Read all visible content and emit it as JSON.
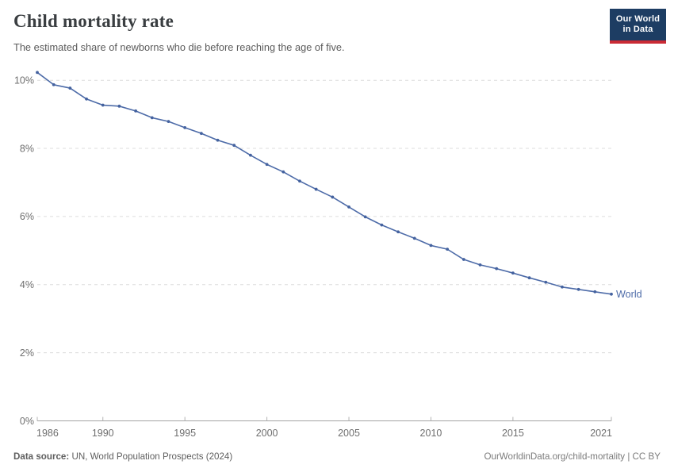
{
  "header": {
    "title": "Child mortality rate",
    "subtitle": "The estimated share of newborns who die before reaching the age of five.",
    "logo": {
      "line1": "Our World",
      "line2": "in Data"
    }
  },
  "footer": {
    "source_label": "Data source:",
    "source_text": " UN, World Population Prospects (2024)",
    "right_text": "OurWorldinData.org/child-mortality | CC BY"
  },
  "colors": {
    "line": "#4d6ba8",
    "point": "#44629f",
    "end_label": "#4d6ba8",
    "grid": "#dcdcdc",
    "axis": "#a3a3a3",
    "tick": "#b3b3b3",
    "tick_text": "#6e6e6e",
    "logo_bg": "#1d3d63",
    "logo_red": "#ca2b35"
  },
  "chart_data": {
    "type": "line",
    "title": "Child mortality rate",
    "subtitle": "The estimated share of newborns who die before reaching the age of five.",
    "xlabel": "",
    "ylabel": "",
    "ylim": [
      0,
      10.4
    ],
    "grid": "horizontal-dashed",
    "legend_position": "end-of-line",
    "end_label": "World",
    "x_ticks": [
      1986,
      1990,
      1995,
      2000,
      2005,
      2010,
      2015,
      2021
    ],
    "y_ticks": [
      0,
      2,
      4,
      6,
      8,
      10
    ],
    "y_tick_suffix": "%",
    "series": [
      {
        "name": "World",
        "x": [
          1986,
          1987,
          1988,
          1989,
          1990,
          1991,
          1992,
          1993,
          1994,
          1995,
          1996,
          1997,
          1998,
          1999,
          2000,
          2001,
          2002,
          2003,
          2004,
          2005,
          2006,
          2007,
          2008,
          2009,
          2010,
          2011,
          2012,
          2013,
          2014,
          2015,
          2016,
          2017,
          2018,
          2019,
          2020,
          2021
        ],
        "values": [
          10.23,
          9.87,
          9.77,
          9.45,
          9.27,
          9.24,
          9.1,
          8.9,
          8.79,
          8.61,
          8.44,
          8.24,
          8.09,
          7.8,
          7.53,
          7.31,
          7.04,
          6.8,
          6.57,
          6.28,
          5.99,
          5.75,
          5.55,
          5.36,
          5.15,
          5.04,
          4.74,
          4.58,
          4.47,
          4.34,
          4.2,
          4.07,
          3.93,
          3.86,
          3.79,
          3.72
        ]
      }
    ]
  }
}
